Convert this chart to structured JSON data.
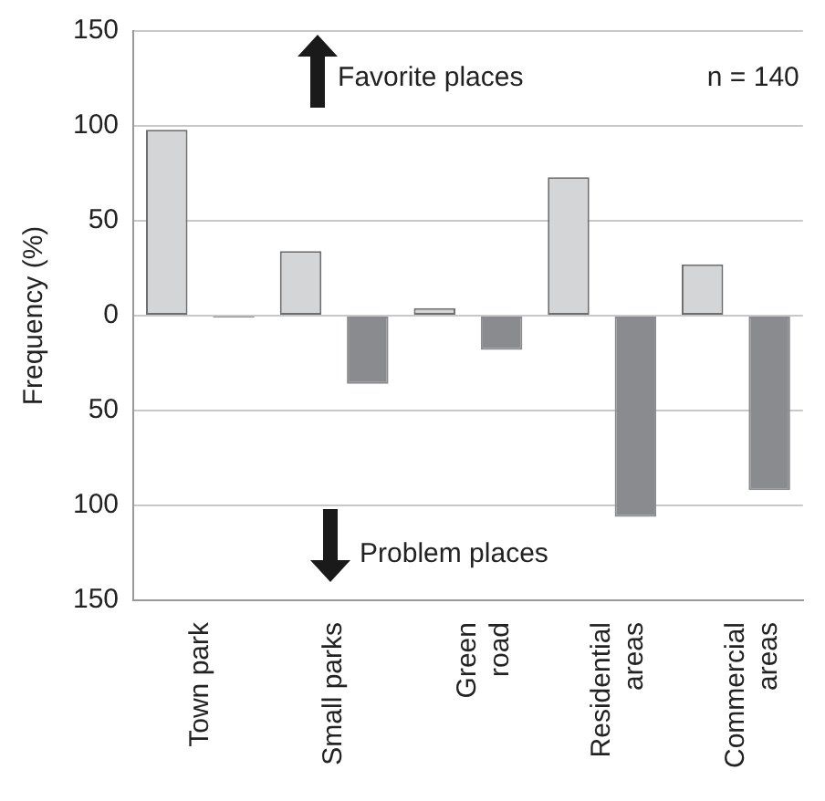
{
  "chart_data": {
    "type": "bar",
    "ylabel": "Frequency (%)",
    "categories": [
      "Town park",
      "Small parks",
      "Green\nroad",
      "Residential\nareas",
      "Commercial\nareas"
    ],
    "series": [
      {
        "color": "#d4d5d7",
        "values": [
          98,
          34,
          4,
          73,
          27
        ]
      },
      {
        "color": "#8a8b8e",
        "values": [
          -1,
          -36,
          -18,
          -106,
          -92
        ]
      }
    ],
    "ylim": [
      -150,
      150
    ],
    "yticks": [
      150,
      100,
      50,
      0,
      {
        "value": -50,
        "label": "50"
      },
      {
        "value": -100,
        "label": "100"
      },
      {
        "value": -150,
        "label": "150"
      }
    ],
    "grid": "y",
    "annotations": [
      "Favorite places",
      "n = 140",
      "Problem places"
    ]
  }
}
